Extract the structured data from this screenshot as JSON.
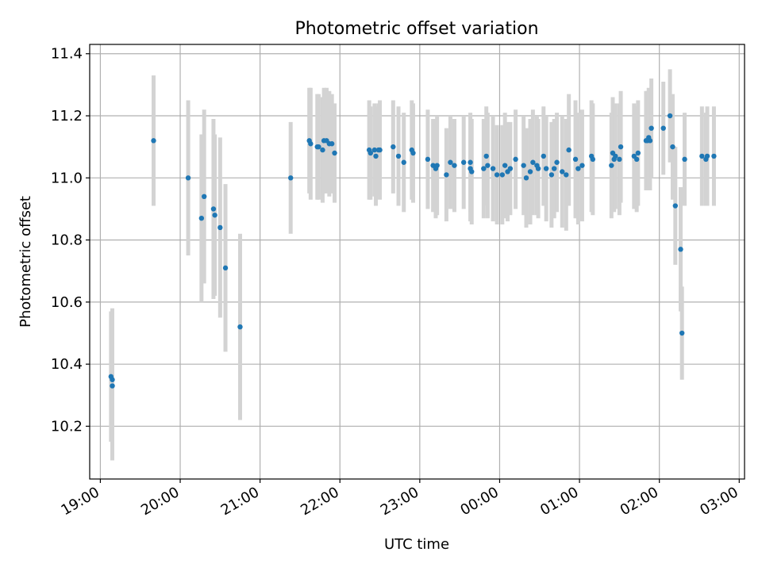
{
  "chart_data": {
    "type": "scatter",
    "title": "Photometric offset variation",
    "xlabel": "UTC time",
    "ylabel": "Photometric offset",
    "grid": true,
    "x_axis": {
      "type": "time",
      "range": [
        "18:52",
        "03:04"
      ],
      "ticks": [
        "19:00",
        "20:00",
        "21:00",
        "22:00",
        "23:00",
        "00:00",
        "01:00",
        "02:00",
        "03:00"
      ]
    },
    "ylim": [
      10.03,
      11.43
    ],
    "yticks": [
      "10.2",
      "10.4",
      "10.6",
      "10.8",
      "11.0",
      "11.2",
      "11.4"
    ],
    "colors": {
      "point": "#1f77b4",
      "errorbar": "#d3d3d3",
      "grid": "#b0b0b0"
    },
    "series": [
      {
        "x": [
          "19:08",
          "19:09",
          "19:09",
          "19:40",
          "20:06",
          "20:16",
          "20:18",
          "20:25",
          "20:26",
          "20:30",
          "20:34",
          "20:45",
          "21:23",
          "21:37",
          "21:38",
          "21:43",
          "21:44",
          "21:47",
          "21:48",
          "21:50",
          "21:52",
          "21:54",
          "21:56",
          "22:22",
          "22:23",
          "22:26",
          "22:27",
          "22:29",
          "22:30",
          "22:40",
          "22:44",
          "22:48",
          "22:54",
          "22:55",
          "23:06",
          "23:10",
          "23:12",
          "23:13",
          "23:20",
          "23:23",
          "23:26",
          "23:33",
          "23:38",
          "23:38",
          "23:39",
          "23:48",
          "23:50",
          "23:51",
          "23:55",
          "23:58",
          "00:02",
          "00:04",
          "00:06",
          "00:08",
          "00:12",
          "00:18",
          "00:20",
          "00:23",
          "00:25",
          "00:28",
          "00:29",
          "00:33",
          "00:35",
          "00:39",
          "00:41",
          "00:43",
          "00:47",
          "00:50",
          "00:52",
          "00:57",
          "00:59",
          "01:02",
          "01:09",
          "01:10",
          "01:24",
          "01:25",
          "01:26",
          "01:27",
          "01:30",
          "01:31",
          "01:41",
          "01:43",
          "01:44",
          "01:50",
          "01:51",
          "01:52",
          "01:53",
          "01:54",
          "02:03",
          "02:08",
          "02:10",
          "02:12",
          "02:16",
          "02:17",
          "02:19",
          "02:32",
          "02:35",
          "02:36",
          "02:41"
        ],
        "y": [
          10.36,
          10.35,
          10.33,
          11.12,
          11.0,
          10.87,
          10.94,
          10.9,
          10.88,
          10.84,
          10.71,
          10.52,
          11.0,
          11.12,
          11.11,
          11.1,
          11.1,
          11.09,
          11.12,
          11.12,
          11.11,
          11.11,
          11.08,
          11.09,
          11.08,
          11.09,
          11.07,
          11.09,
          11.09,
          11.1,
          11.07,
          11.05,
          11.09,
          11.08,
          11.06,
          11.04,
          11.03,
          11.04,
          11.01,
          11.05,
          11.04,
          11.05,
          11.05,
          11.03,
          11.02,
          11.03,
          11.07,
          11.04,
          11.03,
          11.01,
          11.01,
          11.04,
          11.02,
          11.03,
          11.06,
          11.04,
          11.0,
          11.02,
          11.05,
          11.04,
          11.03,
          11.07,
          11.03,
          11.01,
          11.03,
          11.05,
          11.02,
          11.01,
          11.09,
          11.06,
          11.03,
          11.04,
          11.07,
          11.06,
          11.04,
          11.08,
          11.06,
          11.07,
          11.06,
          11.1,
          11.07,
          11.06,
          11.08,
          11.12,
          11.12,
          11.13,
          11.12,
          11.16,
          11.16,
          11.2,
          11.1,
          10.91,
          10.77,
          10.5,
          11.06,
          11.07,
          11.06,
          11.07,
          11.07
        ],
        "err": [
          0.21,
          0.23,
          0.24,
          0.21,
          0.25,
          0.27,
          0.28,
          0.29,
          0.26,
          0.29,
          0.27,
          0.3,
          0.18,
          0.17,
          0.18,
          0.17,
          0.17,
          0.17,
          0.17,
          0.17,
          0.17,
          0.16,
          0.16,
          0.16,
          0.15,
          0.15,
          0.16,
          0.15,
          0.16,
          0.15,
          0.16,
          0.16,
          0.16,
          0.16,
          0.16,
          0.15,
          0.16,
          0.16,
          0.15,
          0.15,
          0.15,
          0.15,
          0.16,
          0.17,
          0.17,
          0.16,
          0.16,
          0.17,
          0.17,
          0.16,
          0.16,
          0.17,
          0.16,
          0.15,
          0.16,
          0.16,
          0.16,
          0.17,
          0.17,
          0.16,
          0.16,
          0.16,
          0.17,
          0.17,
          0.16,
          0.16,
          0.18,
          0.18,
          0.18,
          0.19,
          0.18,
          0.18,
          0.18,
          0.18,
          0.17,
          0.18,
          0.17,
          0.17,
          0.18,
          0.18,
          0.17,
          0.17,
          0.17,
          0.16,
          0.16,
          0.16,
          0.16,
          0.16,
          0.15,
          0.15,
          0.17,
          0.19,
          0.2,
          0.15,
          0.15,
          0.16,
          0.15,
          0.16,
          0.16
        ]
      }
    ]
  }
}
